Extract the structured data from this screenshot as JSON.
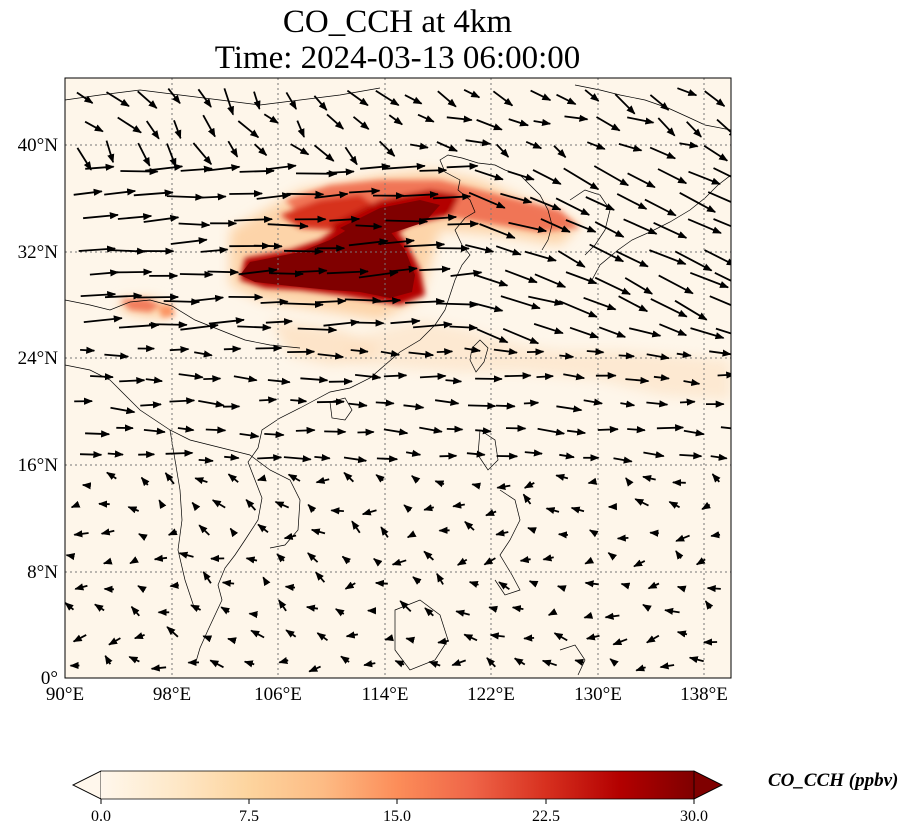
{
  "title": {
    "line1": "CO_CCH at 4km",
    "line2": "Time: 2024-03-13 06:00:00"
  },
  "map": {
    "lon_range": [
      90,
      140
    ],
    "lat_range": [
      0,
      45
    ],
    "lon_ticks": [
      "90°E",
      "98°E",
      "106°E",
      "114°E",
      "122°E",
      "130°E",
      "138°E"
    ],
    "lat_ticks": [
      "0°",
      "8°N",
      "16°N",
      "24°N",
      "32°N",
      "40°N"
    ],
    "gridlines": true,
    "colormap": "OrRd",
    "land_color": "#fef6ea",
    "hotspot_color": "#800000"
  },
  "colorbar": {
    "label": "CO_CCH (ppbv)",
    "ticks": [
      "0.0",
      "7.5",
      "15.0",
      "22.5",
      "30.0"
    ],
    "range": [
      0,
      30
    ],
    "extend": "both",
    "colors": [
      "#fff7ec",
      "#fee8c8",
      "#fdd49e",
      "#fdbb84",
      "#fc8d59",
      "#ef6548",
      "#d7301f",
      "#b30000",
      "#7f0000"
    ]
  }
}
